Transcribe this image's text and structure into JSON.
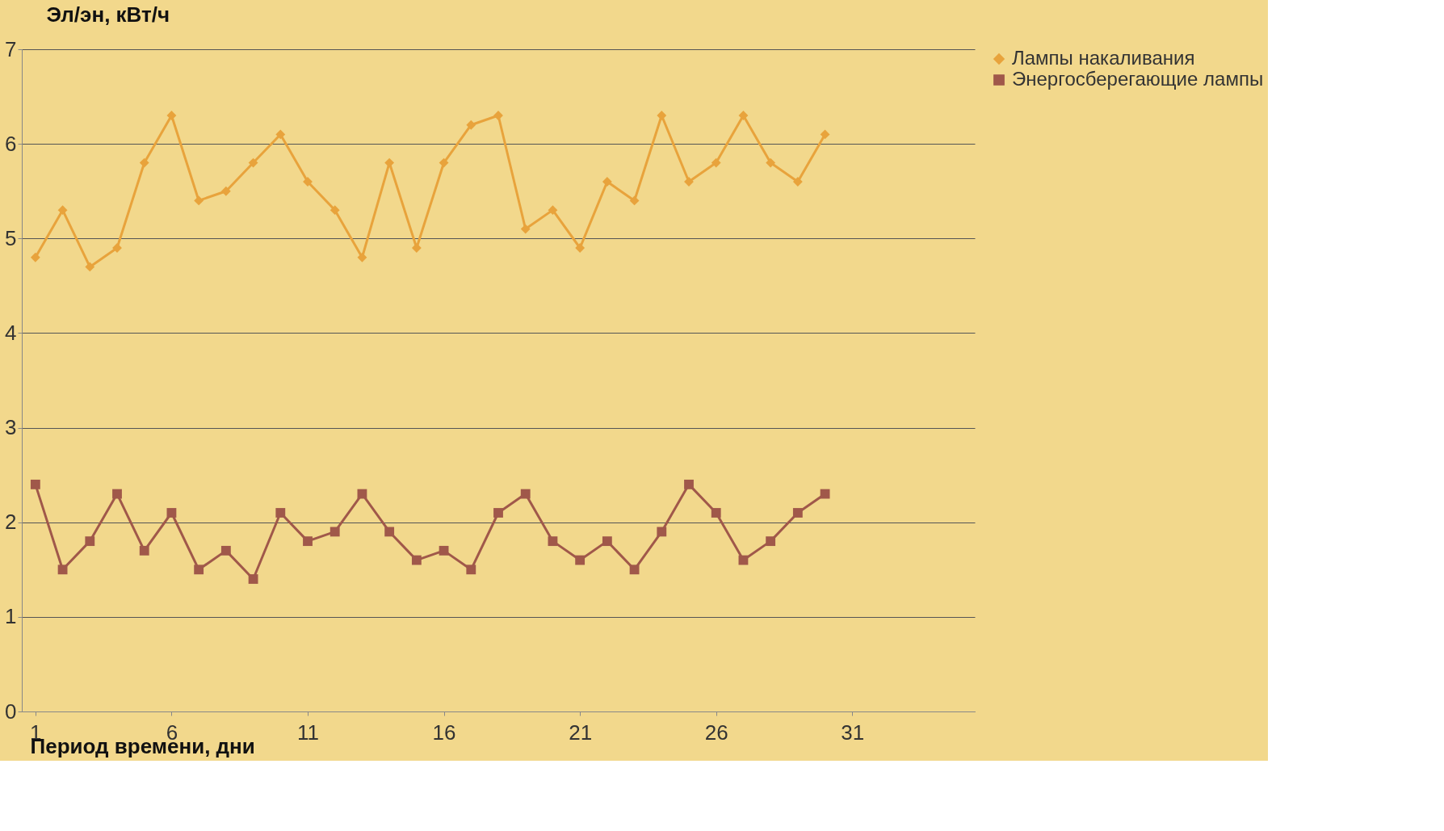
{
  "chart_data": {
    "type": "line",
    "xlabel": "Период времени, дни",
    "ylabel": "Эл/эн, кВт/ч",
    "x": [
      1,
      2,
      3,
      4,
      5,
      6,
      7,
      8,
      9,
      10,
      11,
      12,
      13,
      14,
      15,
      16,
      17,
      18,
      19,
      20,
      21,
      22,
      23,
      24,
      25,
      26,
      27,
      28,
      29,
      30
    ],
    "xlim": [
      0.5,
      35.5
    ],
    "xticks": [
      1,
      6,
      11,
      16,
      21,
      26,
      31
    ],
    "ylim": [
      0,
      7
    ],
    "yticks": [
      0,
      1,
      2,
      3,
      4,
      5,
      6,
      7
    ],
    "grid": "y",
    "legend": "right",
    "series": [
      {
        "name": "Лампы накаливания",
        "color": "#e8a33c",
        "marker": "diamond",
        "values": [
          4.8,
          5.3,
          4.7,
          4.9,
          5.8,
          6.3,
          5.4,
          5.5,
          5.8,
          6.1,
          5.6,
          5.3,
          4.8,
          5.8,
          4.9,
          5.8,
          6.2,
          6.3,
          5.1,
          5.3,
          4.9,
          5.6,
          5.4,
          6.3,
          5.6,
          5.8,
          6.3,
          5.8,
          5.6,
          6.1
        ]
      },
      {
        "name": "Энергосберегающие лампы",
        "color": "#a0584a",
        "marker": "square",
        "values": [
          2.4,
          1.5,
          1.8,
          2.3,
          1.7,
          2.1,
          1.5,
          1.7,
          1.4,
          2.1,
          1.8,
          1.9,
          2.3,
          1.9,
          1.6,
          1.7,
          1.5,
          2.1,
          2.3,
          1.8,
          1.6,
          1.8,
          1.5,
          1.9,
          2.4,
          2.1,
          1.6,
          1.8,
          2.1,
          2.3
        ]
      }
    ]
  }
}
